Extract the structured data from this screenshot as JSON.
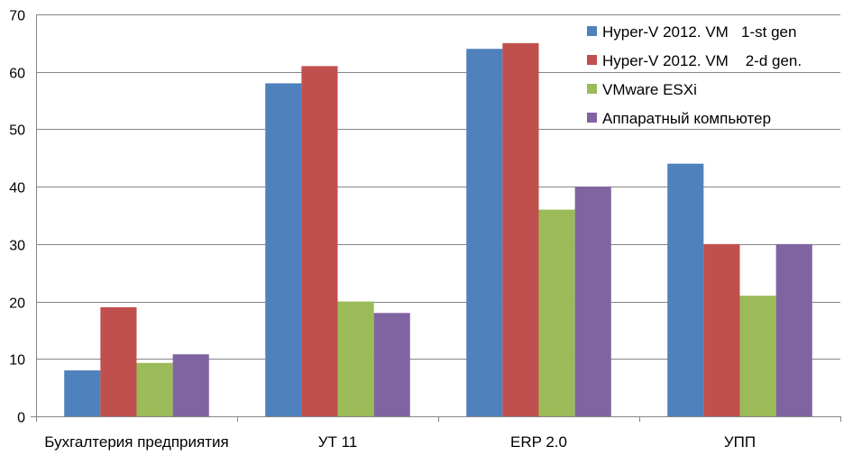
{
  "chart_data": {
    "type": "bar",
    "categories": [
      "Бухгалтерия предприятия",
      "УТ 11",
      "ERP 2.0",
      "УПП"
    ],
    "series": [
      {
        "name": "Hyper-V 2012. VM   1-st gen",
        "values": [
          8,
          58,
          64,
          44
        ],
        "color": "#4F81BD"
      },
      {
        "name": "Hyper-V 2012. VM    2-d gen.",
        "values": [
          19,
          61,
          65,
          30
        ],
        "color": "#C0504D"
      },
      {
        "name": "VMware ESXi",
        "values": [
          9.3,
          20,
          36,
          21
        ],
        "color": "#9BBB59"
      },
      {
        "name": "Аппаратный компьютер",
        "values": [
          10.8,
          18,
          40,
          30
        ],
        "color": "#8064A2"
      }
    ],
    "ylim": [
      0,
      70
    ],
    "yticks": [
      0,
      10,
      20,
      30,
      40,
      50,
      60,
      70
    ],
    "grid": true,
    "legend_position": "top-right",
    "title": "",
    "xlabel": "",
    "ylabel": ""
  }
}
